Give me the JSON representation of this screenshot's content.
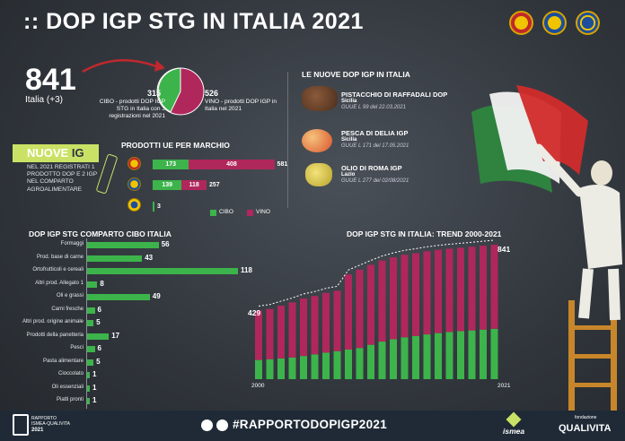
{
  "header": {
    "title": ":: DOP IGP STG IN ITALIA 2021"
  },
  "summary": {
    "total": "841",
    "total_sub": "Italia (+3)",
    "cibo_value": "315",
    "cibo_text": "CIBO - prodotti DOP IGP STG in Italia con 3 registrazioni nel 2021",
    "vino_value": "526",
    "vino_text": "VINO - prodotti DOP IGP in Italia nel 2021"
  },
  "nuove_ig": {
    "title_a": "NUOVE ",
    "title_b": "IG",
    "text": "NEL 2021 REGISTRATI 1 PRODOTTO DOP E 2 IGP NEL COMPARTO AGROALIMENTARE"
  },
  "marchio": {
    "title": "PRODOTTI UE PER MARCHIO",
    "rows": [
      {
        "cibo": 173,
        "vino": 408,
        "total": 581,
        "cibo_label": "173",
        "vino_label": "408",
        "total_label": "581"
      },
      {
        "cibo": 139,
        "vino": 118,
        "total": 257,
        "cibo_label": "139",
        "vino_label": "118",
        "total_label": "257"
      },
      {
        "cibo": 3,
        "vino": 0,
        "total": 3,
        "cibo_label": "",
        "vino_label": "",
        "total_label": "3"
      }
    ],
    "legend_cibo": "CIBO",
    "legend_vino": "VINO"
  },
  "nuove_list": {
    "title": "LE NUOVE DOP IGP IN ITALIA",
    "items": [
      {
        "name": "PISTACCHIO DI RAFFADALI DOP",
        "region": "Sicilia",
        "ref": "GUUE L 99 del 22.03.2021"
      },
      {
        "name": "PESCA DI DELIA IGP",
        "region": "Sicilia",
        "ref": "GUUE L 171 del 17.05.2021"
      },
      {
        "name": "OLIO DI ROMA IGP",
        "region": "Lazio",
        "ref": "GUUE L 277 del 02/08/2021"
      }
    ]
  },
  "chart_data": [
    {
      "type": "bar",
      "title": "DOP IGP STG COMPARTO CIBO ITALIA",
      "categories": [
        "Formaggi",
        "Prod. base di carne",
        "Ortofrutticoli e cereali",
        "Altri prod. Allegato 1",
        "Oli e grassi",
        "Carni fresche",
        "Altri prod. origine animale",
        "Prodotti della panetteria",
        "Pesci",
        "Pasta alimentare",
        "Cioccolato",
        "Oli essenziali",
        "Piatti pronti"
      ],
      "values": [
        56,
        43,
        118,
        8,
        49,
        6,
        5,
        17,
        6,
        5,
        1,
        1,
        1
      ],
      "orientation": "horizontal"
    },
    {
      "type": "bar",
      "title": "DOP IGP STG IN ITALIA: TREND 2000-2021",
      "x": [
        2000,
        2001,
        2002,
        2003,
        2004,
        2005,
        2006,
        2007,
        2008,
        2009,
        2010,
        2011,
        2012,
        2013,
        2014,
        2015,
        2016,
        2017,
        2018,
        2019,
        2020,
        2021
      ],
      "series": [
        {
          "name": "CIBO",
          "values": [
            120,
            125,
            130,
            135,
            145,
            155,
            166,
            175,
            185,
            195,
            215,
            235,
            250,
            262,
            270,
            280,
            288,
            295,
            300,
            305,
            310,
            315
          ]
        },
        {
          "name": "VINO",
          "values": [
            309,
            314,
            330,
            345,
            360,
            365,
            374,
            378,
            470,
            490,
            500,
            507,
            512,
            516,
            518,
            520,
            521,
            521,
            522,
            523,
            525,
            526
          ]
        }
      ],
      "totals": [
        429,
        439,
        460,
        480,
        505,
        520,
        540,
        553,
        655,
        685,
        715,
        742,
        762,
        778,
        788,
        800,
        809,
        816,
        822,
        828,
        835,
        841
      ],
      "total_start_label": "429",
      "total_end_label": "841",
      "x_start_label": "2000",
      "x_end_label": "2021",
      "ylim": [
        0,
        841
      ]
    }
  ],
  "footer": {
    "brand_line1": "RAPPORTO",
    "brand_line2": "ISMEA-QUALIVITA",
    "brand_year": "2021",
    "hashtag": "#RAPPORTODOPIGP2021",
    "ismea": "ismea",
    "fondazione": "fondazione",
    "qualivita": "QUALIVITA"
  },
  "colors": {
    "cibo": "#3cb44b",
    "vino": "#b0275c",
    "accent": "#e8373a"
  }
}
